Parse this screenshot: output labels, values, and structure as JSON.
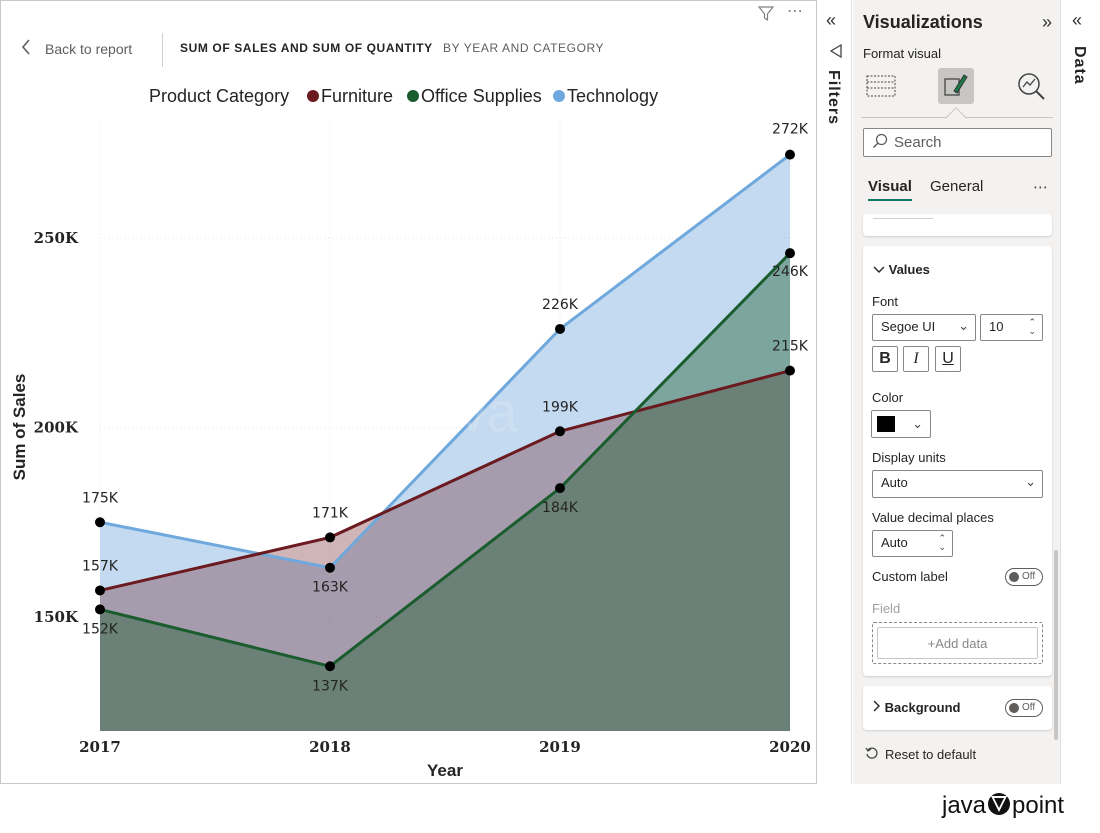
{
  "report": {
    "back_label": "Back to report",
    "title_main": "SUM OF SALES AND SUM OF QUANTITY",
    "title_sub": "BY YEAR AND CATEGORY"
  },
  "chart_data": {
    "type": "area",
    "title": "",
    "legend_title": "Product Category",
    "legend_position": "top",
    "xlabel": "Year",
    "ylabel": "Sum of Sales",
    "categories": [
      "2017",
      "2018",
      "2019",
      "2020"
    ],
    "yticks": [
      150000,
      200000,
      250000
    ],
    "ytick_labels": [
      "150K",
      "200K",
      "250K"
    ],
    "ylim": [
      120000,
      280000
    ],
    "series": [
      {
        "name": "Furniture",
        "color": "#6b1a1f",
        "values": [
          157000,
          171000,
          199000,
          215000
        ],
        "labels": [
          "157K",
          "171K",
          "199K",
          "215K"
        ]
      },
      {
        "name": "Office Supplies",
        "color": "#1a5c2e",
        "values": [
          152000,
          137000,
          184000,
          246000
        ],
        "labels": [
          "152K",
          "137K",
          "184K",
          "246K"
        ]
      },
      {
        "name": "Technology",
        "color": "#6fa8dc",
        "values": [
          175000,
          163000,
          226000,
          272000
        ],
        "labels": [
          "175K",
          "163K",
          "226K",
          "272K"
        ]
      }
    ]
  },
  "watermark": "java",
  "filters": {
    "label": "Filters"
  },
  "visualizations": {
    "title": "Visualizations",
    "format_visual": "Format visual",
    "search_placeholder": "Search",
    "tab_visual": "Visual",
    "tab_general": "General",
    "more": "⋯",
    "values_header": "Values",
    "font_label": "Font",
    "font_family": "Segoe UI",
    "font_size": "10",
    "bold": "B",
    "italic": "I",
    "underline": "U",
    "color_label": "Color",
    "color_value": "#000000",
    "display_units_label": "Display units",
    "display_units_value": "Auto",
    "decimal_label": "Value decimal places",
    "decimal_value": "Auto",
    "custom_label": "Custom label",
    "toggle_off": "Off",
    "field_label": "Field",
    "add_data": "+Add data",
    "background_label": "Background",
    "reset_label": "Reset to default"
  },
  "data_pane": {
    "label": "Data"
  },
  "logo": {
    "text_left": "java",
    "text_right": "point"
  }
}
